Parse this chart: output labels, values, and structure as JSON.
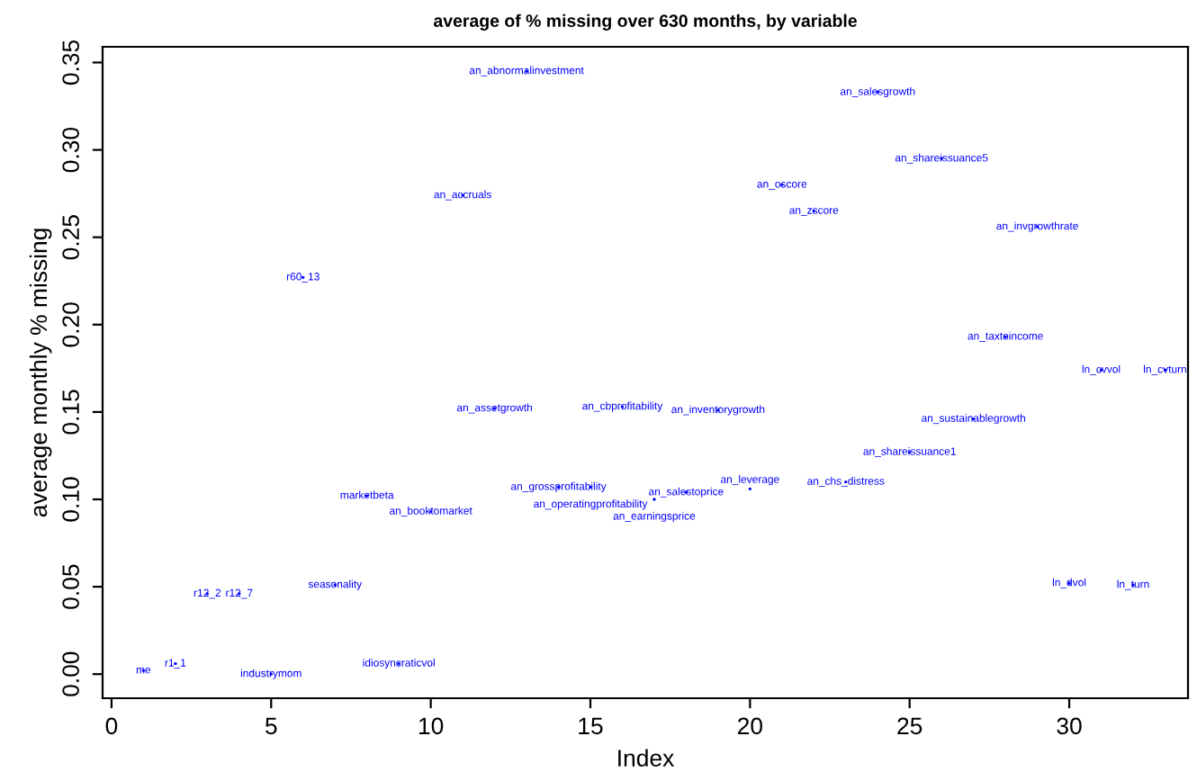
{
  "chart_data": {
    "type": "scatter",
    "title": "average of % missing over 630 months, by variable",
    "xlabel": "Index",
    "ylabel": "average monthly % missing",
    "grid": false,
    "x": [
      1,
      2,
      3,
      4,
      5,
      6,
      7,
      8,
      9,
      10,
      11,
      12,
      13,
      14,
      15,
      16,
      17,
      18,
      19,
      20,
      21,
      22,
      23,
      24,
      25,
      26,
      27,
      28,
      29,
      30,
      31,
      32,
      33
    ],
    "series": [
      {
        "color": "#0000ff",
        "values": [
          0.002,
          0.006,
          0.046,
          0.046,
          0.0,
          0.227,
          0.051,
          0.102,
          0.006,
          0.093,
          0.274,
          0.152,
          0.345,
          0.107,
          0.107,
          0.153,
          0.1,
          0.104,
          0.151,
          0.106,
          0.28,
          0.265,
          0.11,
          0.333,
          0.127,
          0.295,
          0.146,
          0.193,
          0.256,
          0.052,
          0.174,
          0.051,
          0.174
        ],
        "value_labels": [
          "me",
          "r1_1",
          "r12_2",
          "r12_7",
          "industrymom",
          "r60_13",
          "seasonality",
          "marketbeta",
          "idiosyncraticvol",
          "an_booktomarket",
          "an_accruals",
          "an_assetgrowth",
          "an_abnormalinvestment",
          "an_grossprofitability",
          "an_operatingprofitability",
          "an_cbprofitability",
          "an_earningsprice",
          "an_salestoprice",
          "an_inventorygrowth",
          "an_leverage",
          "an_oscore",
          "an_zscore",
          "an_chs_distress",
          "an_salesgrowth",
          "an_shareissuance1",
          "an_shareissuance5",
          "an_sustainablegrowth",
          "an_taxtoincome",
          "an_invgrowthrate",
          "ln_dvol",
          "ln_cvvol",
          "ln_turn",
          "ln_cvturn"
        ]
      }
    ],
    "xlim": [
      -0.28,
      33.72
    ],
    "ylim": [
      -0.0138,
      0.359
    ],
    "xticks": [
      0,
      5,
      10,
      15,
      20,
      25,
      30
    ],
    "yticks": [
      {
        "value": 0,
        "label": "0.00"
      },
      {
        "value": 0.05,
        "label": "0.05"
      },
      {
        "value": 0.1,
        "label": "0.10"
      },
      {
        "value": 0.15,
        "label": "0.15"
      },
      {
        "value": 0.2,
        "label": "0.20"
      },
      {
        "value": 0.25,
        "label": "0.25"
      },
      {
        "value": 0.3,
        "label": "0.30"
      },
      {
        "value": 0.35,
        "label": "0.35"
      }
    ]
  }
}
